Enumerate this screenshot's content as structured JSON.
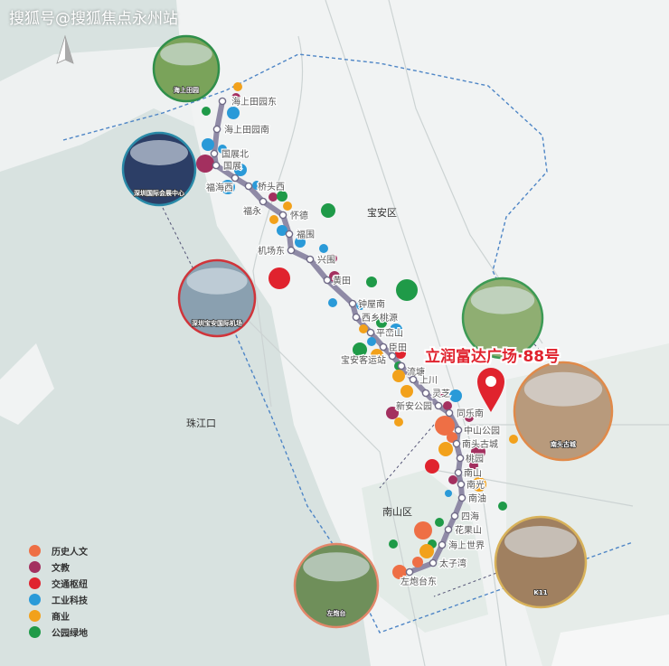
{
  "watermark": "搜狐号@搜狐焦点永州站",
  "title": "立润富达广场·88号",
  "districts": {
    "baoan": "宝安区",
    "estuary": "珠江口",
    "nanshan": "南山区"
  },
  "legend": [
    {
      "label": "历史人文",
      "color": "#ee6f45"
    },
    {
      "label": "文教",
      "color": "#a3305f"
    },
    {
      "label": "交通枢纽",
      "color": "#e0232e"
    },
    {
      "label": "工业科技",
      "color": "#2a9ad8"
    },
    {
      "label": "商业",
      "color": "#f2a11b"
    },
    {
      "label": "公园绿地",
      "color": "#1f9a48"
    }
  ],
  "line_color": "#8f8aa6",
  "stations": [
    "海上田园东",
    "海上田园南",
    "国展北",
    "国展",
    "福海西",
    "桥头西",
    "福永",
    "怀德",
    "福围",
    "机场东",
    "兴围",
    "黄田",
    "钟屋南",
    "西乡桃源",
    "平峦山",
    "臣田",
    "宝安客运站",
    "流塘",
    "上川",
    "灵芝",
    "新安公园",
    "同乐南",
    "中山公园",
    "南头古城",
    "桃园",
    "南山",
    "南光",
    "南油",
    "四海",
    "花果山",
    "海上世界",
    "太子湾",
    "左炮台东"
  ],
  "photos": [
    {
      "label": "海上田园",
      "border": "#2f8f4a"
    },
    {
      "label": "深圳国际会展中心",
      "border": "#2a8aa8"
    },
    {
      "label": "深圳宝安国际机场",
      "border": "#d0343a"
    },
    {
      "label": "",
      "border": "#3c9a54"
    },
    {
      "label": "南头古城",
      "border": "#e08a4a"
    },
    {
      "label": "K11",
      "border": "#d8b25a"
    },
    {
      "label": "左炮台",
      "border": "#e2876a"
    }
  ],
  "pin_icon": "location-pin-icon",
  "north_icon": "north-arrow-icon"
}
